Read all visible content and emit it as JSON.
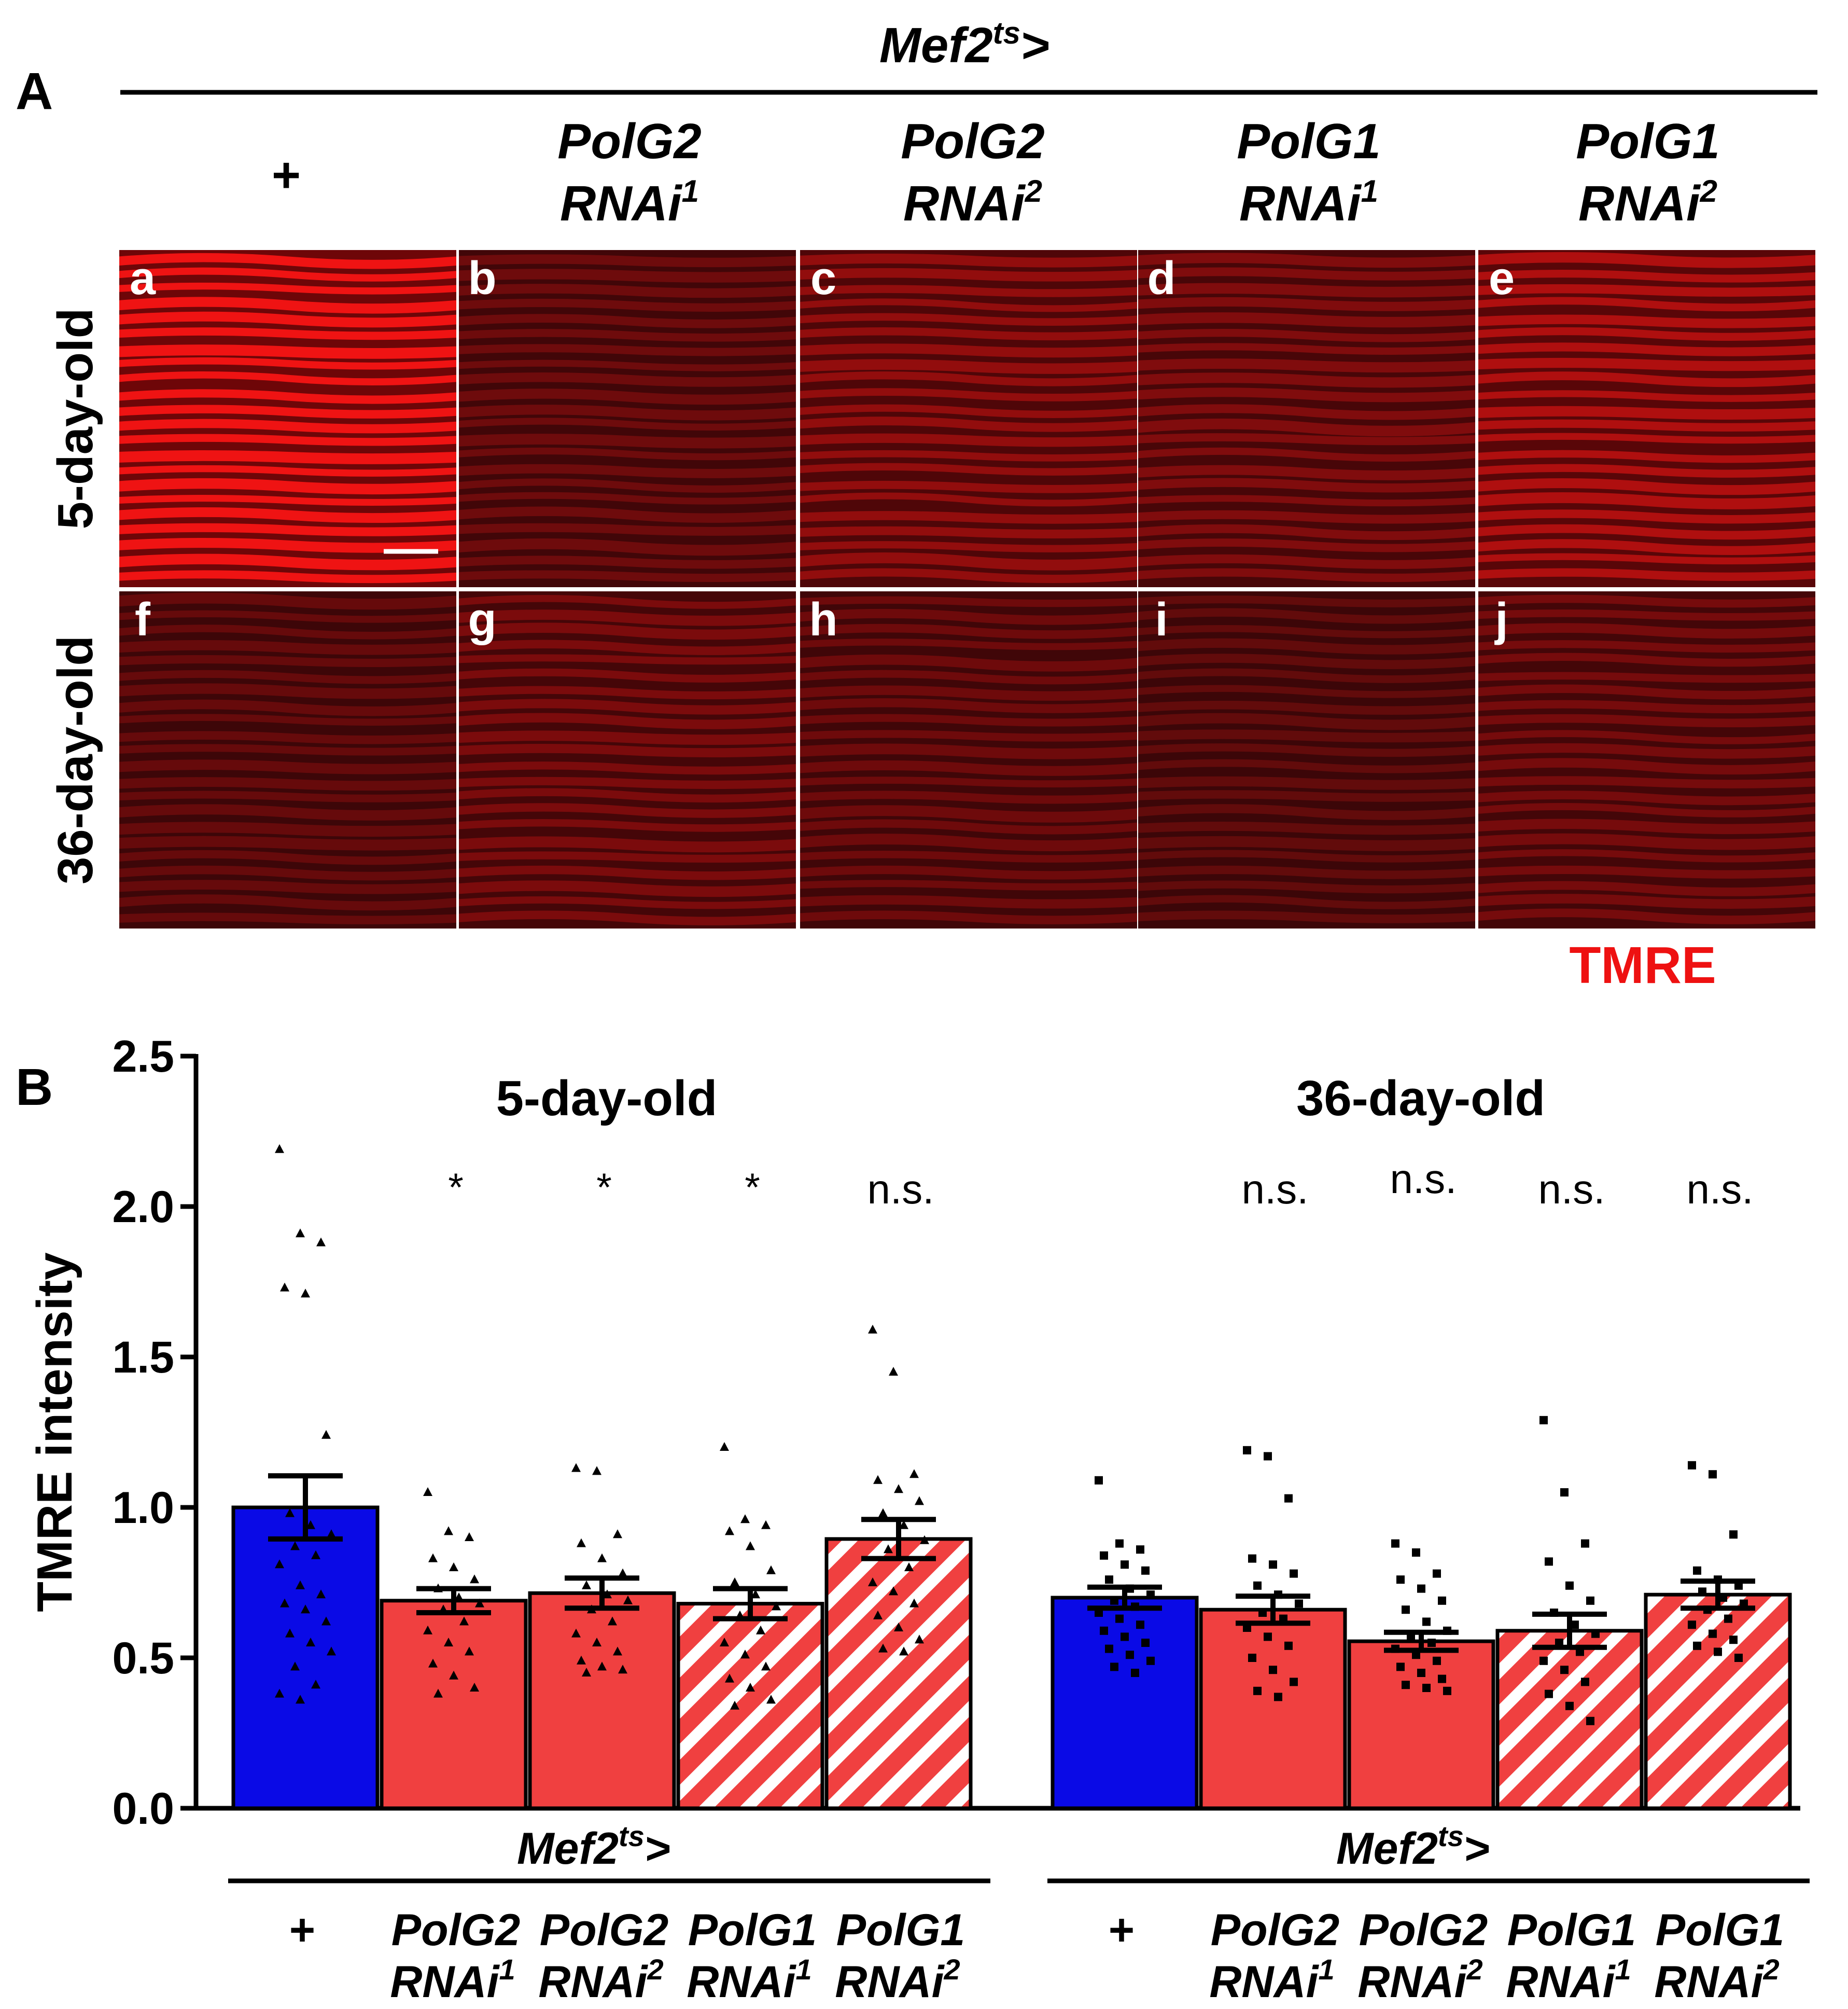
{
  "panel_a": {
    "letter": "A",
    "driver": {
      "base": "Mef2",
      "sup": "ts",
      "arrow": ">"
    },
    "columns": [
      {
        "line1": "+"
      },
      {
        "line1": "PolG2",
        "line2": "RNAi",
        "sup": "1"
      },
      {
        "line1": "PolG2",
        "line2": "RNAi",
        "sup": "2"
      },
      {
        "line1": "PolG1",
        "line2": "RNAi",
        "sup": "1"
      },
      {
        "line1": "PolG1",
        "line2": "RNAi",
        "sup": "2"
      }
    ],
    "rows": [
      "5-day-old",
      "36-day-old"
    ],
    "tiles": [
      {
        "letter": "a",
        "brightness": 1.0
      },
      {
        "letter": "b",
        "brightness": 0.35
      },
      {
        "letter": "c",
        "brightness": 0.55
      },
      {
        "letter": "d",
        "brightness": 0.45
      },
      {
        "letter": "e",
        "brightness": 0.7
      },
      {
        "letter": "f",
        "brightness": 0.3
      },
      {
        "letter": "g",
        "brightness": 0.42
      },
      {
        "letter": "h",
        "brightness": 0.34
      },
      {
        "letter": "i",
        "brightness": 0.28
      },
      {
        "letter": "j",
        "brightness": 0.4
      }
    ],
    "stain_label": "TMRE",
    "stain_color": "#ee1111"
  },
  "chart_data": {
    "type": "bar",
    "panel_letter": "B",
    "ylabel": "TMRE intensity",
    "ylim": [
      0,
      2.5
    ],
    "yticks": [
      "0.0",
      "0.5",
      "1.0",
      "1.5",
      "2.0",
      "2.5"
    ],
    "groups": [
      {
        "title": "5-day-old",
        "driver": {
          "base": "Mef2",
          "sup": "ts",
          "arrow": ">"
        },
        "bars": [
          {
            "label1": "+",
            "label2": "",
            "sup": "",
            "value": 1.0,
            "sem": 0.105,
            "fill": "blue",
            "significance": "",
            "points": [
              2.19,
              1.91,
              1.88,
              1.73,
              1.71,
              1.24,
              0.98,
              0.94,
              0.91,
              0.87,
              0.84,
              0.81,
              0.74,
              0.71,
              0.68,
              0.66,
              0.62,
              0.58,
              0.55,
              0.52,
              0.47,
              0.41,
              0.38,
              0.36
            ],
            "marker": "triangle"
          },
          {
            "label1": "PolG2",
            "label2": "RNAi",
            "sup": "1",
            "value": 0.69,
            "sem": 0.04,
            "fill": "red",
            "significance": "*",
            "points": [
              1.05,
              0.92,
              0.9,
              0.83,
              0.8,
              0.76,
              0.73,
              0.7,
              0.68,
              0.66,
              0.62,
              0.59,
              0.55,
              0.52,
              0.48,
              0.44,
              0.4,
              0.38
            ],
            "marker": "triangle"
          },
          {
            "label1": "PolG2",
            "label2": "RNAi",
            "sup": "2",
            "value": 0.715,
            "sem": 0.05,
            "fill": "red",
            "significance": "*",
            "points": [
              1.13,
              1.12,
              0.91,
              0.88,
              0.83,
              0.78,
              0.74,
              0.71,
              0.69,
              0.66,
              0.62,
              0.58,
              0.55,
              0.52,
              0.49,
              0.47,
              0.46,
              0.45
            ],
            "marker": "triangle"
          },
          {
            "label1": "PolG1",
            "label2": "RNAi",
            "sup": "1",
            "value": 0.68,
            "sem": 0.05,
            "fill": "red-hatched",
            "significance": "*",
            "points": [
              1.2,
              0.96,
              0.94,
              0.92,
              0.87,
              0.79,
              0.75,
              0.71,
              0.67,
              0.64,
              0.59,
              0.55,
              0.51,
              0.47,
              0.43,
              0.4,
              0.36,
              0.34
            ],
            "marker": "triangle"
          },
          {
            "label1": "PolG1",
            "label2": "RNAi",
            "sup": "2",
            "value": 0.895,
            "sem": 0.065,
            "fill": "red-hatched",
            "significance": "n.s.",
            "points": [
              1.59,
              1.45,
              1.11,
              1.09,
              1.06,
              1.02,
              0.98,
              0.94,
              0.89,
              0.86,
              0.8,
              0.75,
              0.72,
              0.68,
              0.64,
              0.6,
              0.56,
              0.53,
              0.52
            ],
            "marker": "triangle"
          }
        ]
      },
      {
        "title": "36-day-old",
        "driver": {
          "base": "Mef2",
          "sup": "ts",
          "arrow": ">"
        },
        "bars": [
          {
            "label1": "+",
            "label2": "",
            "sup": "",
            "value": 0.7,
            "sem": 0.035,
            "fill": "blue",
            "significance": "",
            "points": [
              1.09,
              0.88,
              0.86,
              0.84,
              0.81,
              0.79,
              0.76,
              0.73,
              0.71,
              0.69,
              0.67,
              0.65,
              0.63,
              0.61,
              0.59,
              0.57,
              0.55,
              0.53,
              0.51,
              0.49,
              0.47,
              0.45
            ],
            "marker": "square"
          },
          {
            "label1": "PolG2",
            "label2": "RNAi",
            "sup": "1",
            "value": 0.66,
            "sem": 0.045,
            "fill": "red",
            "significance": "n.s.",
            "points": [
              1.19,
              1.17,
              1.03,
              0.83,
              0.81,
              0.78,
              0.74,
              0.71,
              0.68,
              0.65,
              0.63,
              0.6,
              0.57,
              0.54,
              0.5,
              0.46,
              0.42,
              0.39,
              0.37
            ],
            "marker": "square"
          },
          {
            "label1": "PolG2",
            "label2": "RNAi",
            "sup": "2",
            "value": 0.555,
            "sem": 0.03,
            "fill": "red",
            "significance": "n.s.",
            "points": [
              0.88,
              0.85,
              0.78,
              0.76,
              0.73,
              0.69,
              0.66,
              0.62,
              0.59,
              0.57,
              0.55,
              0.53,
              0.51,
              0.49,
              0.47,
              0.45,
              0.43,
              0.41,
              0.4,
              0.39
            ],
            "marker": "square"
          },
          {
            "label1": "PolG1",
            "label2": "RNAi",
            "sup": "1",
            "value": 0.59,
            "sem": 0.055,
            "fill": "red-hatched",
            "significance": "n.s.",
            "points": [
              1.29,
              1.05,
              0.88,
              0.82,
              0.74,
              0.69,
              0.65,
              0.61,
              0.58,
              0.55,
              0.52,
              0.49,
              0.46,
              0.42,
              0.38,
              0.34,
              0.29
            ],
            "marker": "square"
          },
          {
            "label1": "PolG1",
            "label2": "RNAi",
            "sup": "2",
            "value": 0.71,
            "sem": 0.045,
            "fill": "red-hatched",
            "significance": "n.s.",
            "points": [
              1.14,
              1.11,
              0.91,
              0.79,
              0.76,
              0.74,
              0.72,
              0.7,
              0.68,
              0.66,
              0.63,
              0.61,
              0.58,
              0.56,
              0.54,
              0.52,
              0.5
            ],
            "marker": "square"
          }
        ]
      }
    ],
    "colors": {
      "blue": "#0a0ae6",
      "red": "#f04040",
      "stripe": "#ffffff"
    }
  }
}
